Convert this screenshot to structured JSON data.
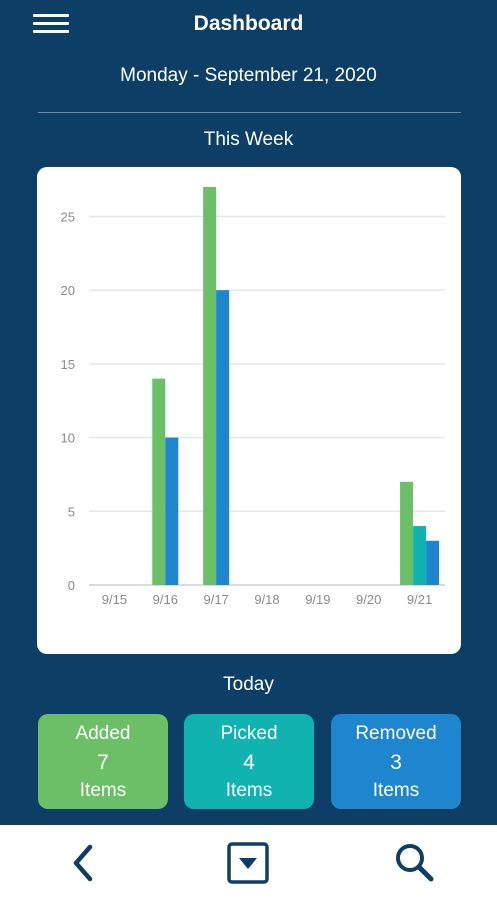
{
  "header": {
    "title": "Dashboard",
    "menu_icon": "hamburger-menu-icon"
  },
  "date": "Monday - September 21, 2020",
  "sections": {
    "week": "This Week",
    "today": "Today"
  },
  "colors": {
    "background": "#0d3f66",
    "added": "#6bbf67",
    "picked": "#10b3b0",
    "removed": "#1e86cf"
  },
  "chart_data": {
    "type": "bar",
    "categories": [
      "9/15",
      "9/16",
      "9/17",
      "9/18",
      "9/19",
      "9/20",
      "9/21"
    ],
    "series": [
      {
        "color": "#6bbf67",
        "values": [
          0,
          14,
          27,
          0,
          0,
          0,
          7
        ]
      },
      {
        "color": "#10b3b0",
        "values": [
          0,
          0,
          0,
          0,
          0,
          0,
          4
        ]
      },
      {
        "color": "#1e86cf",
        "values": [
          0,
          10,
          20,
          0,
          0,
          0,
          3
        ]
      }
    ],
    "yticks": [
      0,
      5,
      10,
      15,
      20,
      25
    ],
    "ylim": [
      0,
      27
    ],
    "grid": true
  },
  "stats": [
    {
      "label": "Added",
      "value": "7",
      "unit": "Items"
    },
    {
      "label": "Picked",
      "value": "4",
      "unit": "Items"
    },
    {
      "label": "Removed",
      "value": "3",
      "unit": "Items"
    }
  ],
  "bottom_nav": {
    "back_icon": "chevron-left-icon",
    "dropdown_icon": "dropdown-box-icon",
    "search_icon": "search-icon"
  }
}
